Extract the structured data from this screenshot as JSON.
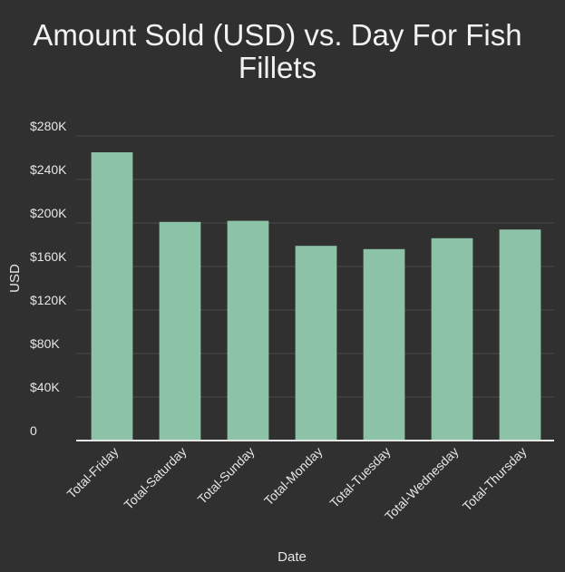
{
  "chart_data": {
    "type": "bar",
    "title_lines": [
      "Amount Sold (USD) vs. Day For Fish",
      "Fillets"
    ],
    "xlabel": "Date",
    "ylabel": "USD",
    "categories": [
      "Total-Friday",
      "Total-Saturday",
      "Total-Sunday",
      "Total-Monday",
      "Total-Tuesday",
      "Total-Wednesday",
      "Total-Thursday"
    ],
    "values": [
      265000,
      201000,
      202000,
      179000,
      176000,
      186000,
      194000
    ],
    "ylim": [
      0,
      280000
    ],
    "yticks": [
      0,
      40000,
      80000,
      120000,
      160000,
      200000,
      240000,
      280000
    ],
    "ytick_labels": [
      "0",
      "$40K",
      "$80K",
      "$120K",
      "$160K",
      "$200K",
      "$240K",
      "$280K"
    ],
    "grid": true,
    "colors": {
      "background": "#303030",
      "bar": "#8cc2a5",
      "grid": "#4a4a4a",
      "axis": "#e6e6e6",
      "text": "#e6e6e6"
    }
  }
}
